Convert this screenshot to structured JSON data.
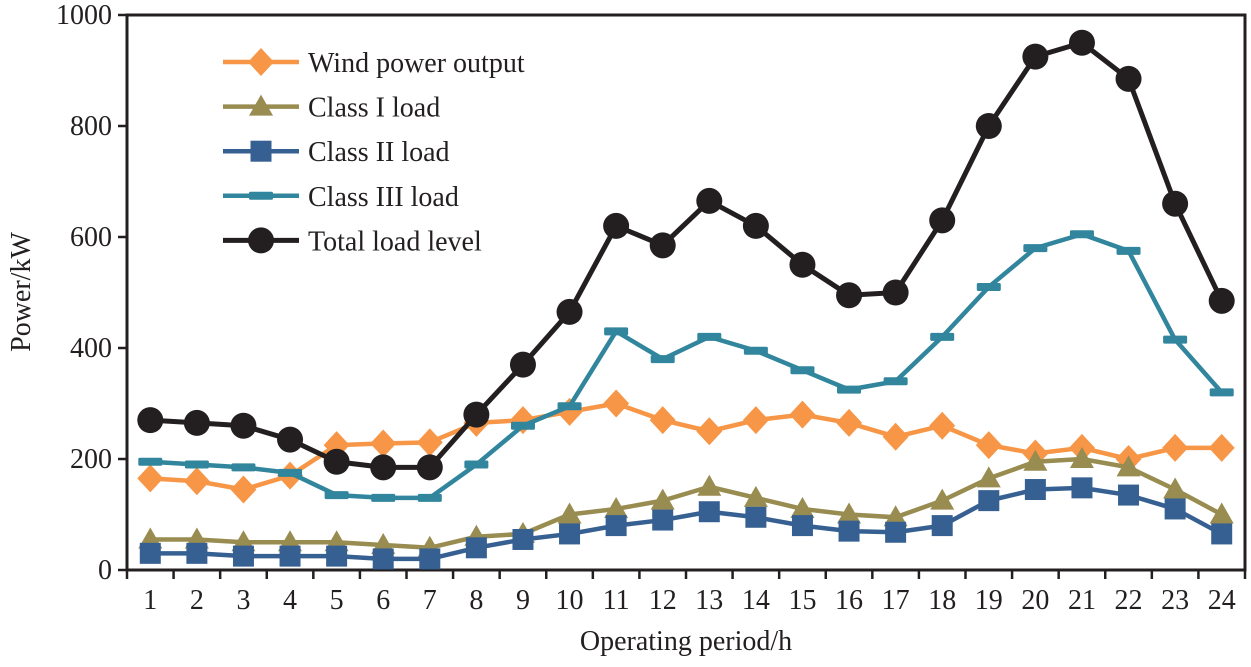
{
  "chart_data": {
    "type": "line",
    "title": "",
    "xlabel": "Operating period/h",
    "ylabel": "Power/kW",
    "x": [
      1,
      2,
      3,
      4,
      5,
      6,
      7,
      8,
      9,
      10,
      11,
      12,
      13,
      14,
      15,
      16,
      17,
      18,
      19,
      20,
      21,
      22,
      23,
      24
    ],
    "x_tick_labels": [
      "1",
      "2",
      "3",
      "4",
      "5",
      "6",
      "7",
      "8",
      "9",
      "10",
      "11",
      "12",
      "13",
      "14",
      "15",
      "16",
      "17",
      "18",
      "19",
      "20",
      "21",
      "22",
      "23",
      "24"
    ],
    "y_tick_labels": [
      "0",
      "200",
      "400",
      "600",
      "800",
      "1000"
    ],
    "ylim": [
      0,
      1000
    ],
    "ytick_step": 200,
    "grid": false,
    "legend_position": "upper-left-inside",
    "frame_color": "#231F20",
    "series": [
      {
        "name": "Wind power output",
        "marker": "diamond",
        "color": "#F79646",
        "values": [
          165,
          160,
          145,
          170,
          225,
          228,
          230,
          265,
          270,
          285,
          300,
          270,
          250,
          270,
          280,
          265,
          240,
          260,
          225,
          210,
          220,
          200,
          220,
          220
        ]
      },
      {
        "name": "Class I load",
        "marker": "triangle",
        "color": "#988C50",
        "values": [
          55,
          55,
          50,
          50,
          50,
          45,
          40,
          60,
          65,
          100,
          110,
          125,
          150,
          130,
          110,
          100,
          95,
          125,
          165,
          195,
          200,
          185,
          145,
          100
        ]
      },
      {
        "name": "Class II load",
        "marker": "square",
        "color": "#376092",
        "values": [
          30,
          30,
          25,
          25,
          25,
          20,
          20,
          40,
          55,
          65,
          80,
          90,
          105,
          95,
          80,
          70,
          68,
          80,
          125,
          145,
          148,
          135,
          110,
          65
        ]
      },
      {
        "name": "Class III load",
        "marker": "dash",
        "color": "#31859C",
        "values": [
          195,
          190,
          185,
          175,
          135,
          130,
          130,
          190,
          260,
          295,
          430,
          380,
          420,
          395,
          360,
          325,
          340,
          420,
          510,
          580,
          605,
          575,
          415,
          320
        ]
      },
      {
        "name": "Total load level",
        "marker": "circle",
        "color": "#231F20",
        "values": [
          270,
          265,
          260,
          235,
          195,
          185,
          185,
          280,
          370,
          465,
          620,
          585,
          665,
          620,
          550,
          495,
          500,
          630,
          800,
          925,
          950,
          885,
          660,
          485
        ]
      }
    ]
  }
}
